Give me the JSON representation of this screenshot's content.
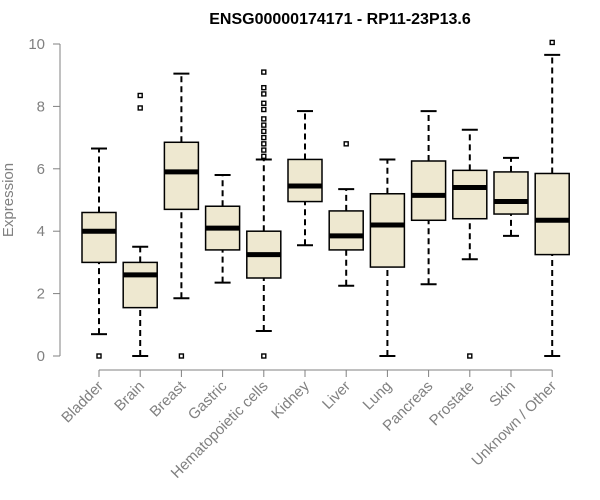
{
  "chart_data": {
    "type": "boxplot",
    "title": "ENSG00000174171 - RP11-23P13.6",
    "xlabel": "",
    "ylabel": "Expression",
    "ylim": [
      0,
      10
    ],
    "yticks": [
      0,
      2,
      4,
      6,
      8,
      10
    ],
    "grid": false,
    "colors": {
      "box_fill": "#EEE8D0",
      "box_stroke": "#000000",
      "axis": "#808080"
    },
    "categories": [
      "Bladder",
      "Brain",
      "Breast",
      "Gastric",
      "Hematopoietic cells",
      "Kidney",
      "Liver",
      "Lung",
      "Pancreas",
      "Prostate",
      "Skin",
      "Unknown / Other"
    ],
    "boxes": [
      {
        "min": 0.7,
        "q1": 3.0,
        "median": 4.0,
        "q3": 4.6,
        "max": 6.65,
        "outliers": [
          0
        ]
      },
      {
        "min": 0.0,
        "q1": 1.55,
        "median": 2.6,
        "q3": 3.0,
        "max": 3.5,
        "outliers": [
          7.95,
          8.35
        ]
      },
      {
        "min": 1.85,
        "q1": 4.7,
        "median": 5.9,
        "q3": 6.85,
        "max": 9.05,
        "outliers": [
          0
        ]
      },
      {
        "min": 2.35,
        "q1": 3.4,
        "median": 4.1,
        "q3": 4.8,
        "max": 5.8,
        "outliers": []
      },
      {
        "min": 0.8,
        "q1": 2.5,
        "median": 3.25,
        "q3": 4.0,
        "max": 6.3,
        "outliers": [
          0,
          6.4,
          6.6,
          6.8,
          7.0,
          7.2,
          7.4,
          7.6,
          7.9,
          8.1,
          8.4,
          8.6,
          9.1
        ]
      },
      {
        "min": 3.55,
        "q1": 4.95,
        "median": 5.45,
        "q3": 6.3,
        "max": 7.85,
        "outliers": []
      },
      {
        "min": 2.25,
        "q1": 3.4,
        "median": 3.85,
        "q3": 4.65,
        "max": 5.35,
        "outliers": [
          6.8
        ]
      },
      {
        "min": 0.0,
        "q1": 2.85,
        "median": 4.2,
        "q3": 5.2,
        "max": 6.3,
        "outliers": []
      },
      {
        "min": 2.3,
        "q1": 4.35,
        "median": 5.15,
        "q3": 6.25,
        "max": 7.85,
        "outliers": []
      },
      {
        "min": 3.1,
        "q1": 4.4,
        "median": 5.4,
        "q3": 5.95,
        "max": 7.25,
        "outliers": [
          0
        ]
      },
      {
        "min": 3.85,
        "q1": 4.55,
        "median": 4.95,
        "q3": 5.9,
        "max": 6.35,
        "outliers": []
      },
      {
        "min": 0.0,
        "q1": 3.25,
        "median": 4.35,
        "q3": 5.85,
        "max": 9.65,
        "outliers": [
          10.05
        ]
      }
    ]
  }
}
